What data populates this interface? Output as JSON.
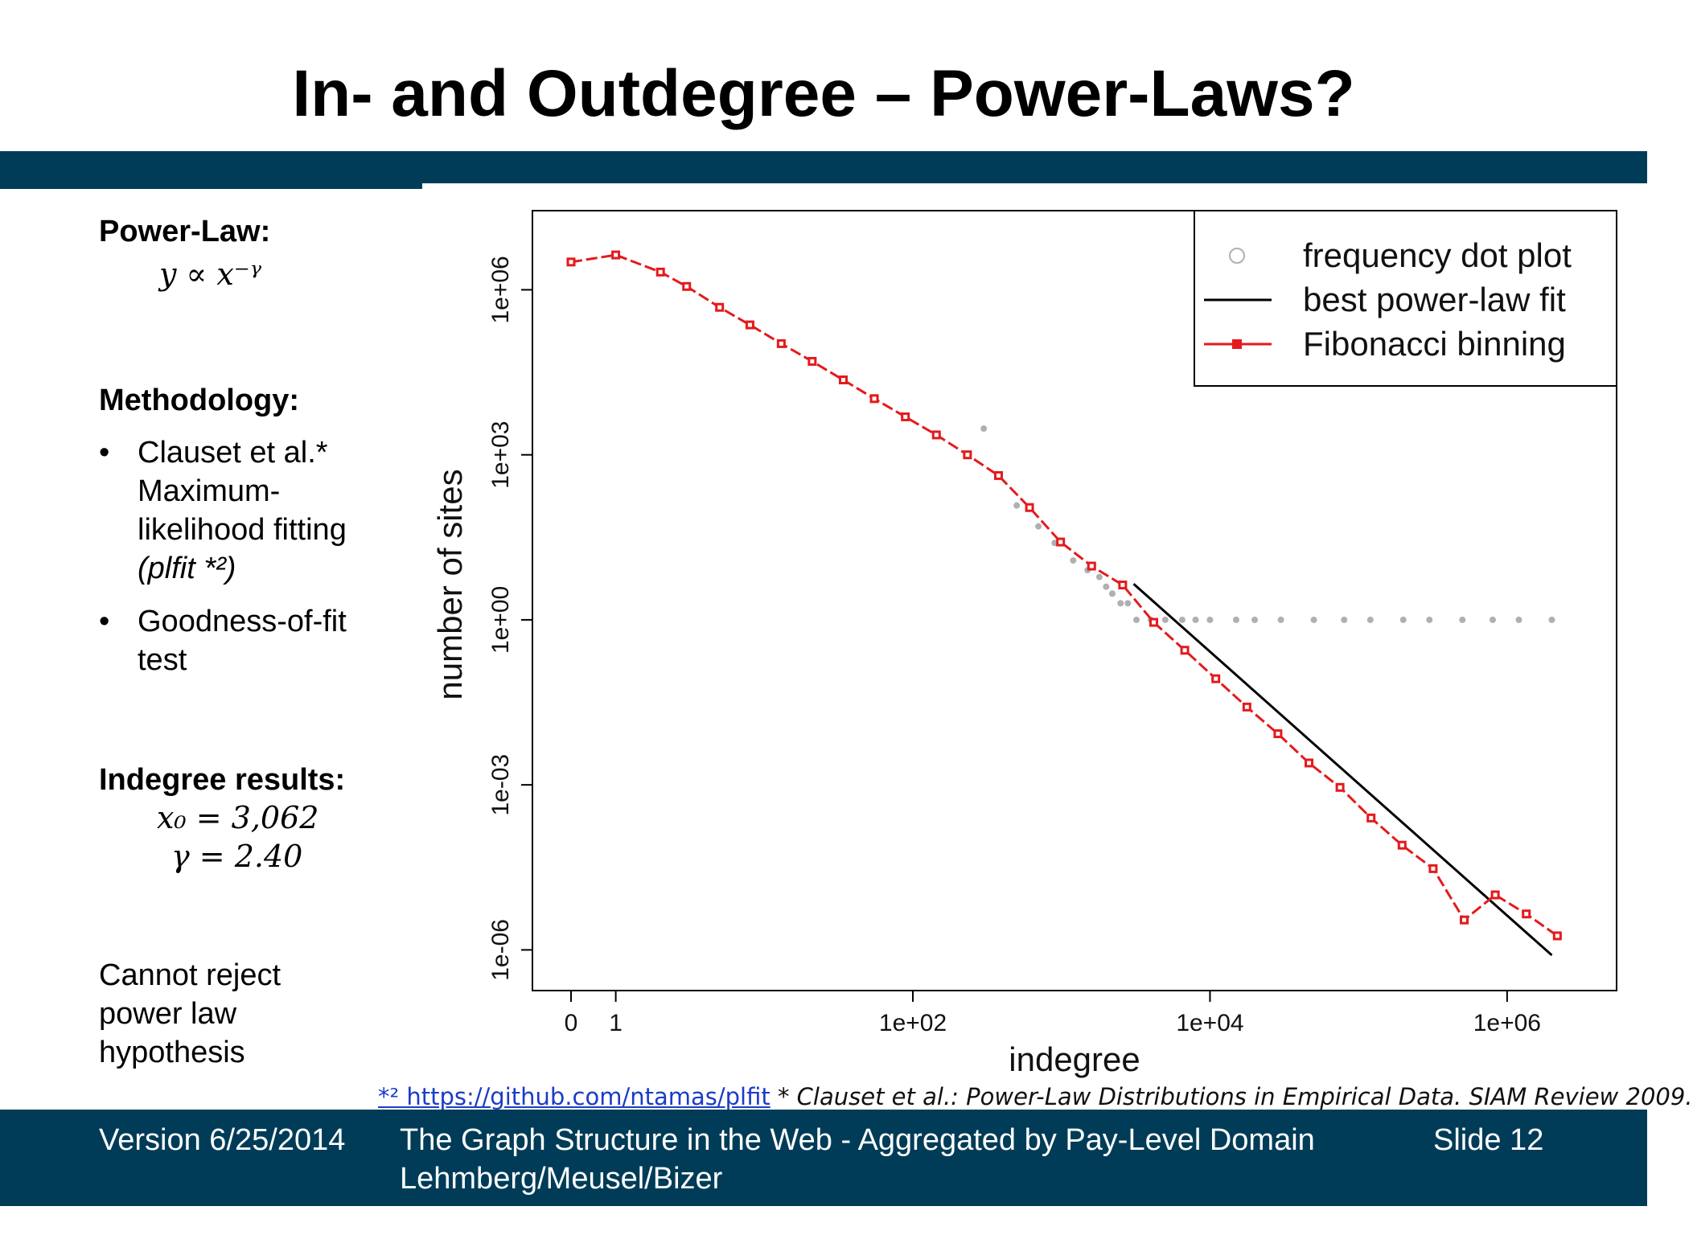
{
  "slide": {
    "title": "In- and Outdegree – Power-Laws?"
  },
  "left_panel": {
    "powerlaw_heading": "Power-Law:",
    "powerlaw_formula": "y ∝ x⁻ᵞ",
    "methodology_heading": "Methodology:",
    "bullets": [
      {
        "lines": [
          "Clauset et al.*",
          "Maximum-",
          "likelihood fitting",
          "(plfit *²)"
        ]
      },
      {
        "lines": [
          "Goodness-of-fit",
          "test"
        ]
      }
    ],
    "results_heading": "Indegree results:",
    "result_x0": "x₀ = 3,062",
    "result_gamma": "γ = 2.40",
    "conclusion_lines": [
      "Cannot reject",
      "power law",
      "hypothesis"
    ]
  },
  "chart_data": {
    "type": "scatter",
    "log_x": true,
    "log_y": true,
    "xlabel": "indegree",
    "ylabel": "number of sites",
    "x_ticks": [
      "0",
      "1",
      "1e+02",
      "1e+04",
      "1e+06"
    ],
    "y_ticks": [
      "1e-06",
      "1e-03",
      "1e+00",
      "1e+03",
      "1e+06"
    ],
    "xlim": [
      0.5,
      3000000
    ],
    "ylim": [
      5e-07,
      10000000
    ],
    "legend_position": "top-right",
    "legend": [
      {
        "label": "frequency dot plot",
        "marker": "open-circle",
        "color": "#b0b0b0"
      },
      {
        "label": "best power-law fit",
        "marker": "line",
        "color": "#000000"
      },
      {
        "label": "Fibonacci binning",
        "marker": "line-square",
        "color": "#e41a1c"
      }
    ],
    "series": [
      {
        "name": "Fibonacci binning",
        "color": "#e41a1c",
        "x": [
          0.5,
          1,
          2,
          3,
          5,
          8,
          13,
          21,
          34,
          55,
          89,
          144,
          233,
          377,
          610,
          987,
          1597,
          2584,
          4181,
          6765,
          10946,
          17711,
          28657,
          46368,
          75025,
          121393,
          196418,
          317811,
          514229,
          832040,
          1346269,
          2178309
        ],
        "y": [
          3200000,
          4300000,
          2100000,
          1150000,
          480000,
          230000,
          105000,
          50000,
          23000,
          10500,
          4900,
          2300,
          1000,
          420,
          110,
          26,
          9.5,
          4.3,
          0.9,
          0.28,
          0.085,
          0.026,
          0.0085,
          0.0025,
          0.0009,
          0.00025,
          8e-05,
          3e-05,
          3.5e-06,
          1e-05,
          4.5e-06,
          1.8e-06
        ]
      },
      {
        "name": "best power-law fit",
        "color": "#000000",
        "x": [
          3062,
          2000000
        ],
        "y": [
          4.5,
          8e-07
        ]
      },
      {
        "name": "frequency dot plot",
        "color": "#b0b0b0",
        "x": [
          1,
          2,
          3,
          5,
          8,
          13,
          21,
          34,
          55,
          89,
          144,
          233,
          300,
          500,
          700,
          900,
          1200,
          1500,
          1800,
          2000,
          2200,
          2500,
          2800,
          3200,
          4000,
          5000,
          6500,
          8000,
          10000,
          15000,
          20000,
          30000,
          50000,
          80000,
          120000,
          200000,
          300000,
          500000,
          800000,
          1200000,
          2000000
        ],
        "y": [
          4300000,
          2100000,
          1150000,
          480000,
          230000,
          105000,
          50000,
          23000,
          10500,
          4900,
          2300,
          1000,
          3000,
          120,
          50,
          25,
          12,
          8,
          6,
          4,
          3,
          2,
          2,
          1,
          1,
          1,
          1,
          1,
          1,
          1,
          1,
          1,
          1,
          1,
          1,
          1,
          1,
          1,
          1,
          1,
          1
        ]
      }
    ]
  },
  "footnote": {
    "link_text": "*² https://github.com/ntamas/plfit",
    "citation": " * Clauset et al.: Power-Law Distributions in Empirical Data. SIAM Review 2009."
  },
  "footer": {
    "version": "Version 6/25/2014",
    "subtitle": "The Graph Structure in the Web - Aggregated by Pay-Level Domain",
    "authors": "Lehmberg/Meusel/Bizer",
    "slide_number": "Slide 12"
  }
}
